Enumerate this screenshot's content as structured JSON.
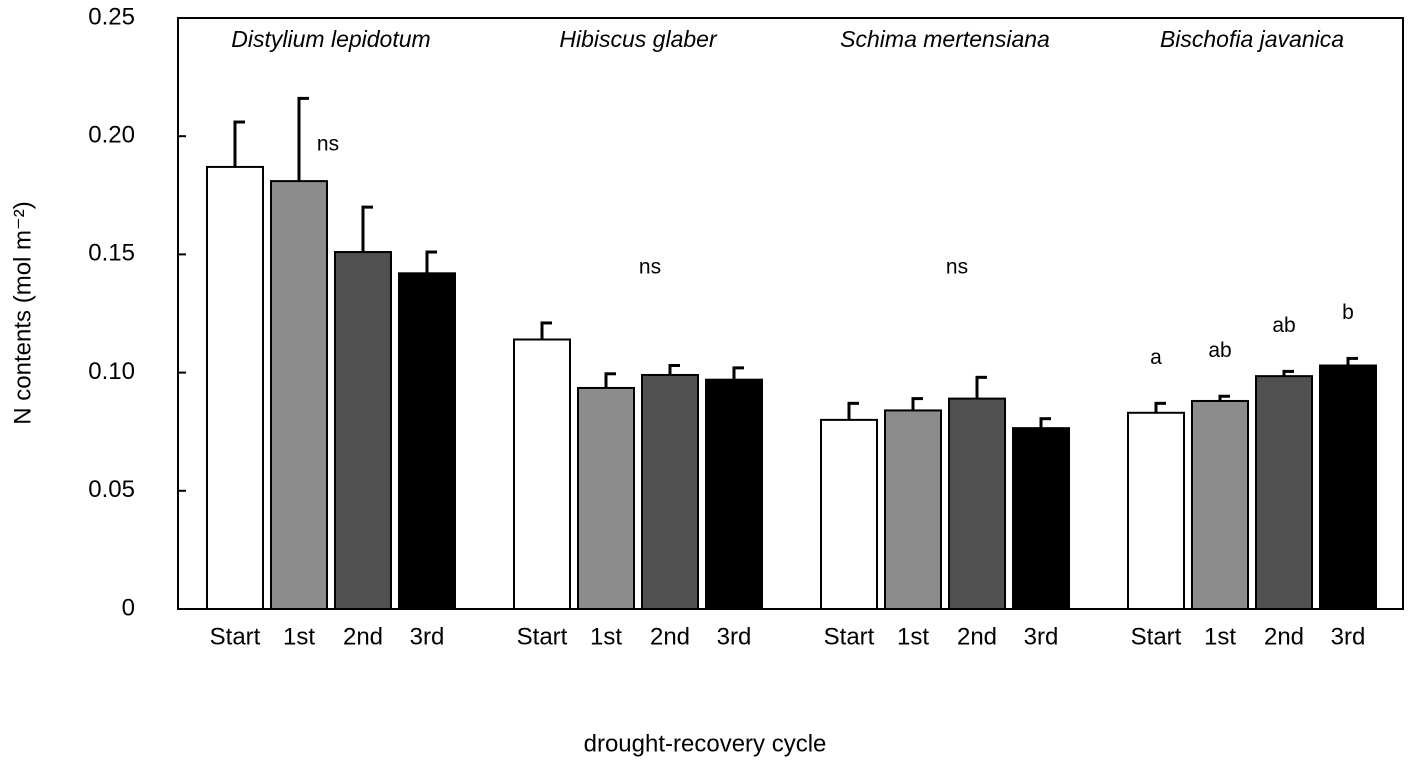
{
  "chart_data": {
    "type": "bar",
    "y_label": "N contents (mol m⁻²)",
    "x_label": "drought-recovery cycle",
    "categories": [
      "Distylium lepidotum",
      "Hibiscus glaber",
      "Schima mertensiana",
      "Bischofia javanica"
    ],
    "series": [
      {
        "name": "Start",
        "color": "#ffffff",
        "values": [
          0.187,
          0.114,
          0.08,
          0.083
        ],
        "errors": [
          0.019,
          0.007,
          0.007,
          0.004
        ]
      },
      {
        "name": "1st",
        "color": "#8c8c8c",
        "values": [
          0.181,
          0.0935,
          0.084,
          0.088
        ],
        "errors": [
          0.035,
          0.006,
          0.005,
          0.002
        ]
      },
      {
        "name": "2nd",
        "color": "#505050",
        "values": [
          0.151,
          0.099,
          0.089,
          0.0985
        ],
        "errors": [
          0.019,
          0.004,
          0.009,
          0.002
        ]
      },
      {
        "name": "3rd",
        "color": "#000000",
        "values": [
          0.142,
          0.097,
          0.0765,
          0.103
        ],
        "errors": [
          0.009,
          0.005,
          0.004,
          0.003
        ]
      }
    ],
    "group_annotations": [
      "ns",
      "ns",
      "ns",
      null
    ],
    "bar_annotations": [
      null,
      null,
      null,
      [
        "a",
        "ab",
        "ab",
        "b"
      ]
    ],
    "ylim": [
      0,
      0.25
    ],
    "yticks": [
      0,
      0.05,
      {
        "value": 0.1,
        "label": "0.10"
      },
      0.15,
      {
        "value": 0.2,
        "label": "0.20"
      },
      0.25
    ]
  }
}
